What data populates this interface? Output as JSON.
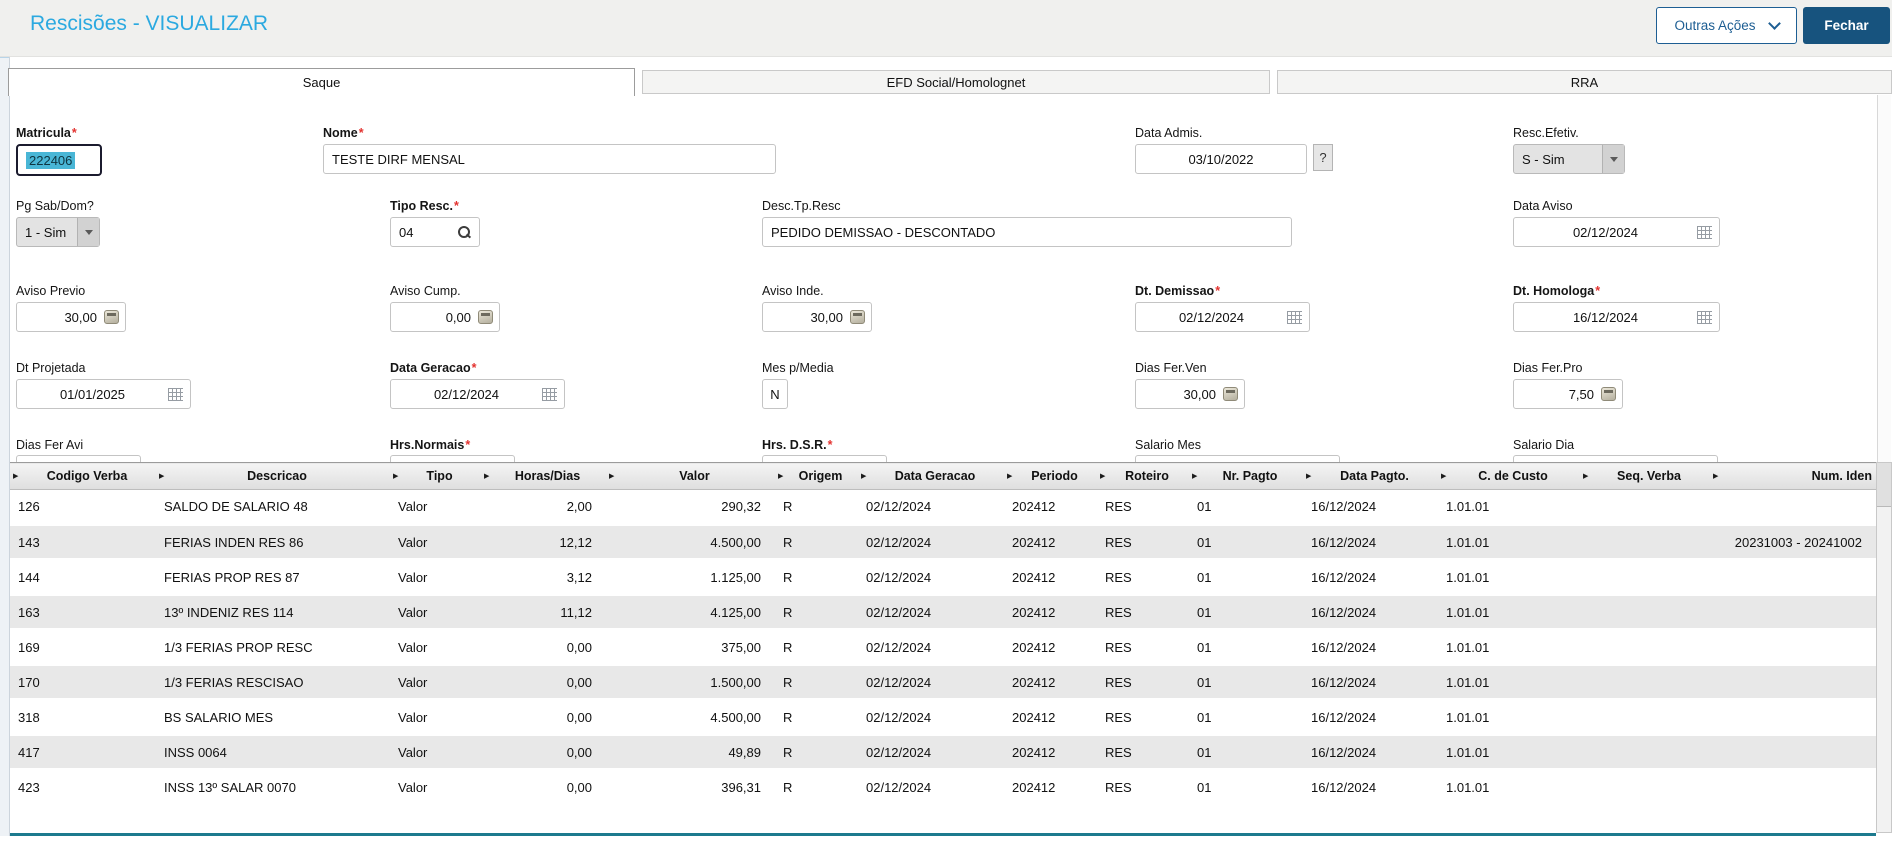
{
  "header": {
    "title": "Rescisões - VISUALIZAR",
    "other_actions_label": "Outras Ações",
    "close_label": "Fechar"
  },
  "tabs": [
    {
      "label": "Saque",
      "active": true
    },
    {
      "label": "EFD Social/Homolognet",
      "active": false
    },
    {
      "label": "RRA",
      "active": false
    }
  ],
  "form": {
    "matricula": {
      "label": "Matricula",
      "value": "222406",
      "required": true
    },
    "nome": {
      "label": "Nome",
      "value": "TESTE DIRF MENSAL",
      "required": true
    },
    "data_admis": {
      "label": "Data Admis.",
      "value": "03/10/2022",
      "help_label": "?"
    },
    "resc_efetiv": {
      "label": "Resc.Efetiv.",
      "value": "S - Sim"
    },
    "pg_sab_dom": {
      "label": "Pg Sab/Dom?",
      "value": "1 - Sim"
    },
    "tipo_resc": {
      "label": "Tipo Resc.",
      "value": "04",
      "required": true
    },
    "desc_tp_resc": {
      "label": "Desc.Tp.Resc",
      "value": "PEDIDO DEMISSAO - DESCONTADO"
    },
    "data_aviso": {
      "label": "Data Aviso",
      "value": "02/12/2024"
    },
    "aviso_previo": {
      "label": "Aviso Previo",
      "value": "30,00"
    },
    "aviso_cump": {
      "label": "Aviso Cump.",
      "value": "0,00"
    },
    "aviso_inde": {
      "label": "Aviso Inde.",
      "value": "30,00"
    },
    "dt_demissao": {
      "label": "Dt. Demissao",
      "value": "02/12/2024",
      "required": true
    },
    "dt_homologa": {
      "label": "Dt. Homologa",
      "value": "16/12/2024",
      "required": true
    },
    "dt_projetada": {
      "label": "Dt Projetada",
      "value": "01/01/2025"
    },
    "data_geracao": {
      "label": "Data Geracao",
      "value": "02/12/2024",
      "required": true
    },
    "mes_p_media": {
      "label": "Mes p/Media",
      "value": "N"
    },
    "dias_fer_ven": {
      "label": "Dias Fer.Ven",
      "value": "30,00"
    },
    "dias_fer_pro": {
      "label": "Dias Fer.Pro",
      "value": "7,50"
    },
    "dias_fer_avi": {
      "label": "Dias Fer Avi"
    },
    "hrs_normais": {
      "label": "Hrs.Normais",
      "required": true
    },
    "hrs_dsr": {
      "label": "Hrs. D.S.R.",
      "required": true
    },
    "salario_mes": {
      "label": "Salario Mes"
    },
    "salario_dia": {
      "label": "Salario Dia"
    }
  },
  "table": {
    "columns": [
      "Codigo Verba",
      "Descricao",
      "Tipo",
      "Horas/Dias",
      "Valor",
      "Origem",
      "Data Geracao",
      "Periodo",
      "Roteiro",
      "Nr. Pagto",
      "Data Pagto.",
      "C. de Custo",
      "Seq. Verba",
      "Num. Iden"
    ],
    "selected_row": 0,
    "rows": [
      [
        "126",
        "SALDO DE SALARIO 48",
        "Valor",
        "2,00",
        "290,32",
        "R",
        "02/12/2024",
        "202412",
        "RES",
        "01",
        "16/12/2024",
        "1.01.01",
        "",
        ""
      ],
      [
        "143",
        "FERIAS INDEN RES 86",
        "Valor",
        "12,12",
        "4.500,00",
        "R",
        "02/12/2024",
        "202412",
        "RES",
        "01",
        "16/12/2024",
        "1.01.01",
        "",
        "20231003 - 20241002"
      ],
      [
        "144",
        "FERIAS PROP RES 87",
        "Valor",
        "3,12",
        "1.125,00",
        "R",
        "02/12/2024",
        "202412",
        "RES",
        "01",
        "16/12/2024",
        "1.01.01",
        "",
        ""
      ],
      [
        "163",
        "13º INDENIZ RES 114",
        "Valor",
        "11,12",
        "4.125,00",
        "R",
        "02/12/2024",
        "202412",
        "RES",
        "01",
        "16/12/2024",
        "1.01.01",
        "",
        ""
      ],
      [
        "169",
        "1/3 FERIAS PROP RESC",
        "Valor",
        "0,00",
        "375,00",
        "R",
        "02/12/2024",
        "202412",
        "RES",
        "01",
        "16/12/2024",
        "1.01.01",
        "",
        ""
      ],
      [
        "170",
        "1/3 FERIAS RESCISAO",
        "Valor",
        "0,00",
        "1.500,00",
        "R",
        "02/12/2024",
        "202412",
        "RES",
        "01",
        "16/12/2024",
        "1.01.01",
        "",
        ""
      ],
      [
        "318",
        "BS SALARIO MES",
        "Valor",
        "0,00",
        "4.500,00",
        "R",
        "02/12/2024",
        "202412",
        "RES",
        "01",
        "16/12/2024",
        "1.01.01",
        "",
        ""
      ],
      [
        "417",
        "INSS 0064",
        "Valor",
        "0,00",
        "49,89",
        "R",
        "02/12/2024",
        "202412",
        "RES",
        "01",
        "16/12/2024",
        "1.01.01",
        "",
        ""
      ],
      [
        "423",
        "INSS 13º SALAR 0070",
        "Valor",
        "0,00",
        "396,31",
        "R",
        "02/12/2024",
        "202412",
        "RES",
        "01",
        "16/12/2024",
        "1.01.01",
        "",
        ""
      ]
    ]
  },
  "colors": {
    "title": "#2ba9e0",
    "primary_button": "#17537e",
    "outline_button": "#1d5e93",
    "selection_highlight": "#49b6d6",
    "grid_row_alt": "#e8e8e8",
    "bottom_rule": "#1c7a8e",
    "required_marker": "#e3322f"
  }
}
